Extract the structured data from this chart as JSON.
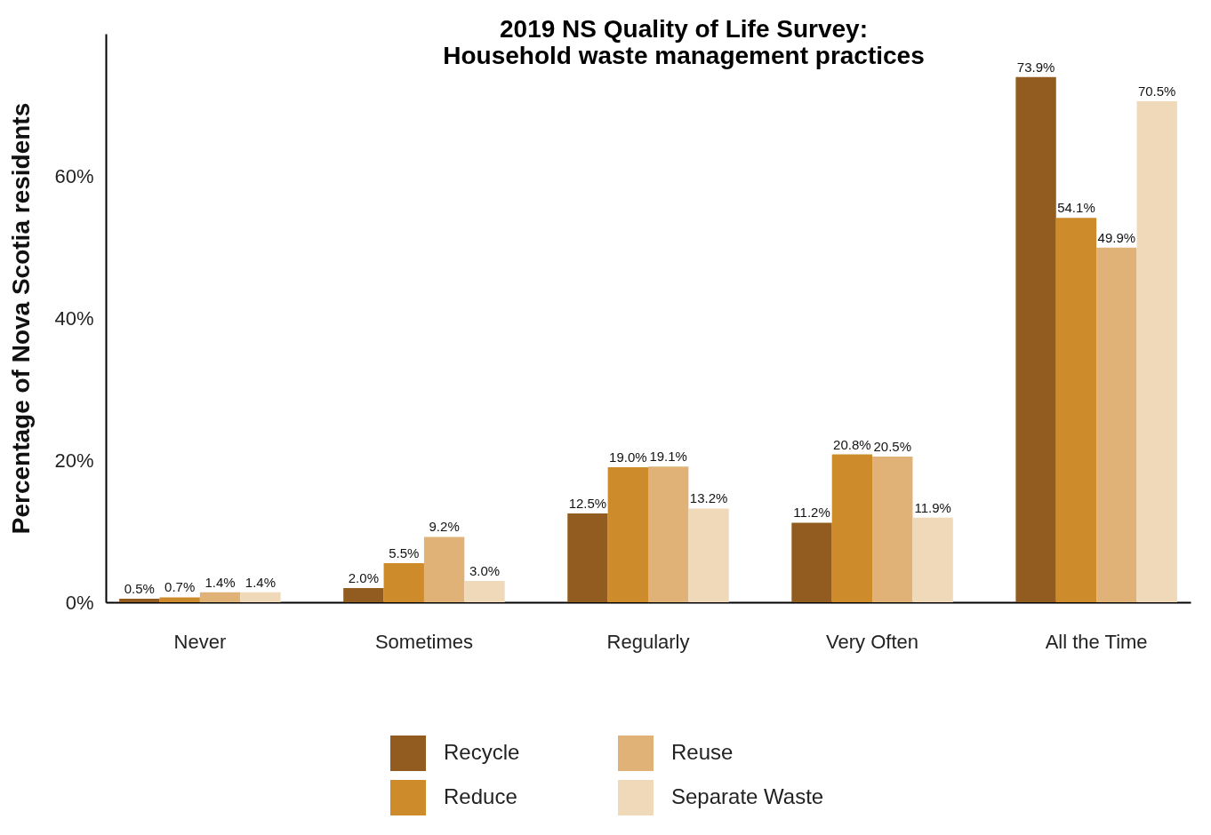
{
  "chart_data": {
    "type": "bar",
    "title": "2019 NS Quality of Life Survey:\nHousehold waste management practices",
    "ylabel": "Percentage of Nova Scotia residents",
    "categories": [
      "Never",
      "Sometimes",
      "Regularly",
      "Very Often",
      "All the Time"
    ],
    "series": [
      {
        "name": "Recycle",
        "color": "#925c20",
        "values": [
          0.5,
          2.0,
          12.5,
          11.2,
          73.9
        ],
        "value_labels": [
          "0.5%",
          "2.0%",
          "12.5%",
          "11.2%",
          "73.9%"
        ]
      },
      {
        "name": "Reduce",
        "color": "#cd8b2b",
        "values": [
          0.7,
          5.5,
          19.0,
          20.8,
          54.1
        ],
        "value_labels": [
          "0.7%",
          "5.5%",
          "19.0%",
          "20.8%",
          "54.1%"
        ]
      },
      {
        "name": "Reuse",
        "color": "#e0b277",
        "values": [
          1.4,
          9.2,
          19.1,
          20.5,
          49.9
        ],
        "value_labels": [
          "1.4%",
          "9.2%",
          "19.1%",
          "20.5%",
          "49.9%"
        ]
      },
      {
        "name": "Separate Waste",
        "color": "#f0d9b8",
        "values": [
          1.4,
          3.0,
          13.2,
          11.9,
          70.5
        ],
        "value_labels": [
          "1.4%",
          "3.0%",
          "13.2%",
          "11.9%",
          "70.5%"
        ]
      }
    ],
    "ylim": [
      0,
      80
    ],
    "yticks": [
      {
        "value": 0,
        "label": "0%"
      },
      {
        "value": 20,
        "label": "20%"
      },
      {
        "value": 40,
        "label": "40%"
      },
      {
        "value": 60,
        "label": "60%"
      }
    ],
    "grid": false,
    "legend": "bottom"
  }
}
